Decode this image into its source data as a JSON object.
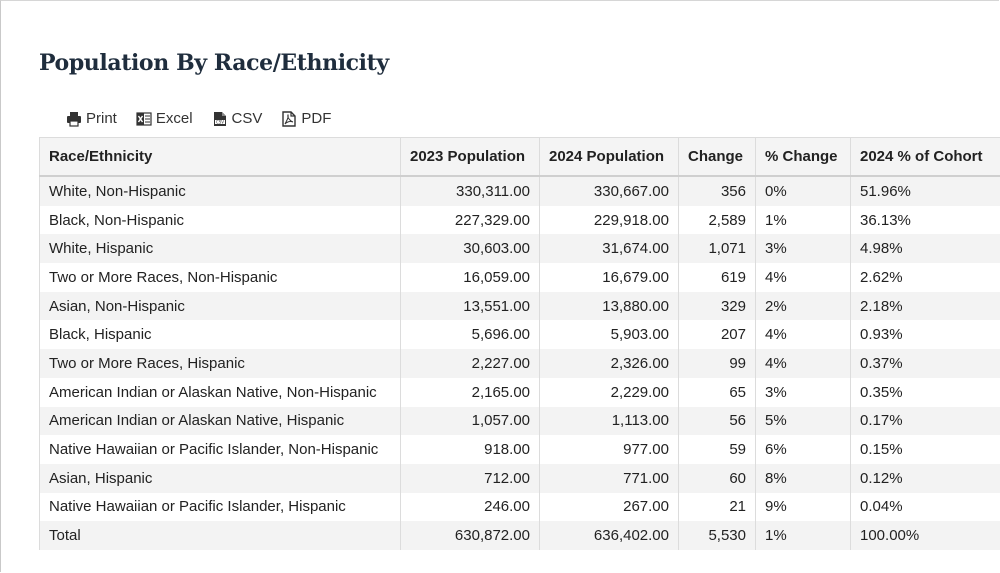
{
  "page": {
    "title": "Population By Race/Ethnicity"
  },
  "toolbar": {
    "print_label": "Print",
    "excel_label": "Excel",
    "csv_label": "CSV",
    "pdf_label": "PDF"
  },
  "table": {
    "headers": [
      "Race/Ethnicity",
      "2023 Population",
      "2024 Population",
      "Change",
      "% Change",
      "2024 % of Cohort"
    ],
    "rows": [
      [
        "White, Non-Hispanic",
        "330,311.00",
        "330,667.00",
        "356",
        "0%",
        "51.96%"
      ],
      [
        "Black, Non-Hispanic",
        "227,329.00",
        "229,918.00",
        "2,589",
        "1%",
        "36.13%"
      ],
      [
        "White, Hispanic",
        "30,603.00",
        "31,674.00",
        "1,071",
        "3%",
        "4.98%"
      ],
      [
        "Two or More Races, Non-Hispanic",
        "16,059.00",
        "16,679.00",
        "619",
        "4%",
        "2.62%"
      ],
      [
        "Asian, Non-Hispanic",
        "13,551.00",
        "13,880.00",
        "329",
        "2%",
        "2.18%"
      ],
      [
        "Black, Hispanic",
        "5,696.00",
        "5,903.00",
        "207",
        "4%",
        "0.93%"
      ],
      [
        "Two or More Races, Hispanic",
        "2,227.00",
        "2,326.00",
        "99",
        "4%",
        "0.37%"
      ],
      [
        "American Indian or Alaskan Native, Non-Hispanic",
        "2,165.00",
        "2,229.00",
        "65",
        "3%",
        "0.35%"
      ],
      [
        "American Indian or Alaskan Native, Hispanic",
        "1,057.00",
        "1,113.00",
        "56",
        "5%",
        "0.17%"
      ],
      [
        "Native Hawaiian or Pacific Islander, Non-Hispanic",
        "918.00",
        "977.00",
        "59",
        "6%",
        "0.15%"
      ],
      [
        "Asian, Hispanic",
        "712.00",
        "771.00",
        "60",
        "8%",
        "0.12%"
      ],
      [
        "Native Hawaiian or Pacific Islander, Hispanic",
        "246.00",
        "267.00",
        "21",
        "9%",
        "0.04%"
      ],
      [
        "Total",
        "630,872.00",
        "636,402.00",
        "5,530",
        "1%",
        "100.00%"
      ]
    ]
  },
  "icons": {
    "print": "printer-icon",
    "excel": "excel-icon",
    "csv": "csv-file-icon",
    "pdf": "pdf-file-icon"
  }
}
